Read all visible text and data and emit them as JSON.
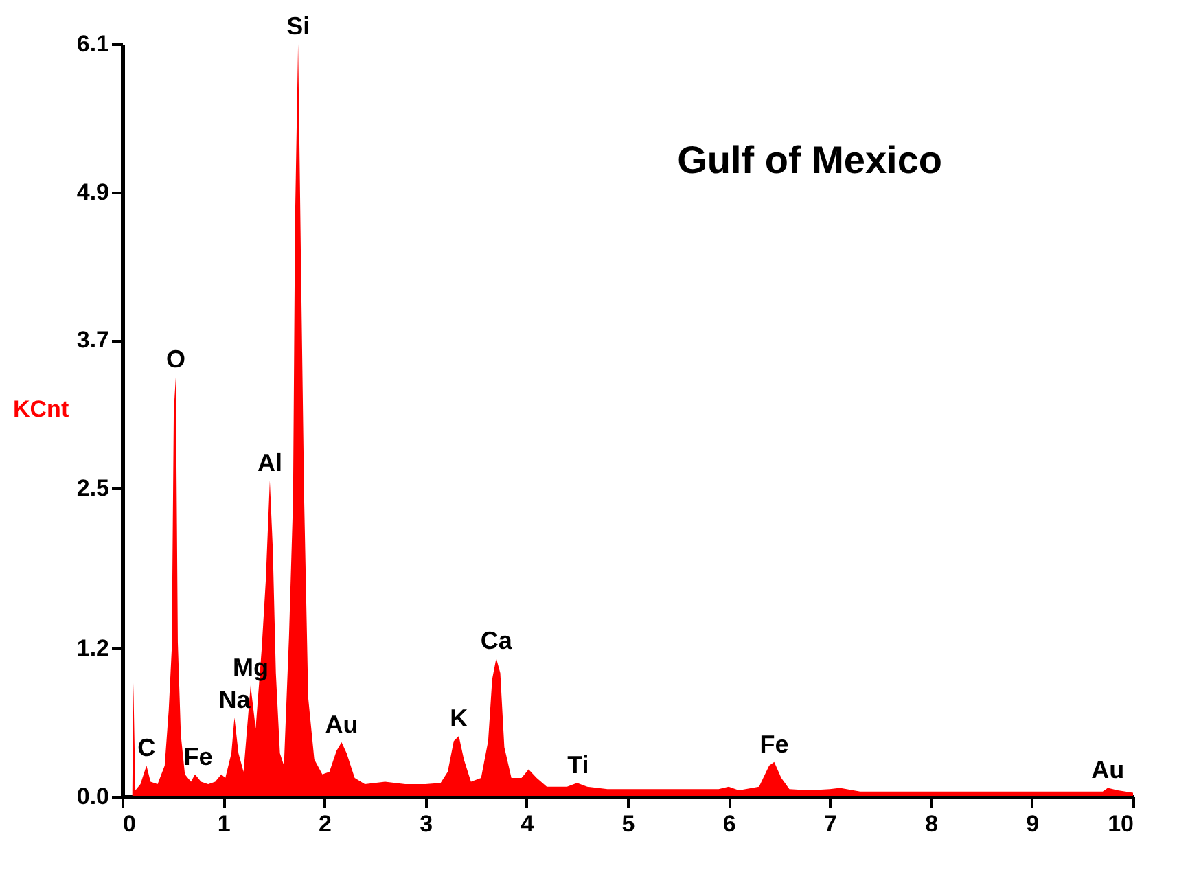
{
  "chart_data": {
    "type": "area",
    "title": "Gulf of Mexico",
    "ylabel": "KCnt",
    "x": [
      0.1,
      0.11,
      0.13,
      0.18,
      0.24,
      0.28,
      0.35,
      0.42,
      0.46,
      0.49,
      0.51,
      0.53,
      0.55,
      0.58,
      0.62,
      0.68,
      0.72,
      0.78,
      0.85,
      0.92,
      0.98,
      1.02,
      1.08,
      1.11,
      1.15,
      1.2,
      1.27,
      1.32,
      1.38,
      1.42,
      1.46,
      1.49,
      1.52,
      1.56,
      1.6,
      1.65,
      1.69,
      1.71,
      1.74,
      1.77,
      1.8,
      1.84,
      1.9,
      1.98,
      2.05,
      2.12,
      2.17,
      2.22,
      2.3,
      2.4,
      2.6,
      2.8,
      3.0,
      3.15,
      3.22,
      3.28,
      3.33,
      3.38,
      3.45,
      3.55,
      3.62,
      3.66,
      3.7,
      3.74,
      3.78,
      3.85,
      3.95,
      4.02,
      4.1,
      4.2,
      4.4,
      4.5,
      4.6,
      4.8,
      5.2,
      5.9,
      6.0,
      6.1,
      6.3,
      6.4,
      6.45,
      6.52,
      6.6,
      6.8,
      7.0,
      7.1,
      7.3,
      8.0,
      9.0,
      9.7,
      9.75,
      9.85,
      10.0
    ],
    "series": [
      {
        "color": "#ff0000",
        "values": [
          0.02,
          0.92,
          0.05,
          0.1,
          0.25,
          0.12,
          0.1,
          0.25,
          0.7,
          1.2,
          3.13,
          3.4,
          1.25,
          0.5,
          0.18,
          0.12,
          0.18,
          0.12,
          0.1,
          0.12,
          0.18,
          0.15,
          0.35,
          0.64,
          0.35,
          0.2,
          0.9,
          0.55,
          1.2,
          1.75,
          2.56,
          2.0,
          1.0,
          0.35,
          0.25,
          1.3,
          2.4,
          4.69,
          6.1,
          4.2,
          2.4,
          0.8,
          0.3,
          0.18,
          0.2,
          0.37,
          0.44,
          0.35,
          0.15,
          0.1,
          0.12,
          0.1,
          0.1,
          0.11,
          0.2,
          0.45,
          0.49,
          0.3,
          0.12,
          0.15,
          0.45,
          0.95,
          1.12,
          1.0,
          0.4,
          0.15,
          0.15,
          0.22,
          0.15,
          0.08,
          0.08,
          0.11,
          0.08,
          0.06,
          0.06,
          0.06,
          0.08,
          0.05,
          0.08,
          0.25,
          0.28,
          0.15,
          0.06,
          0.05,
          0.06,
          0.07,
          0.04,
          0.04,
          0.04,
          0.04,
          0.07,
          0.05,
          0.03
        ]
      }
    ],
    "xlim": [
      0,
      10
    ],
    "xticks": [
      0,
      1,
      2,
      3,
      4,
      5,
      6,
      7,
      8,
      9,
      10
    ],
    "ylim": [
      0,
      6.1
    ],
    "yticks": [
      {
        "value": 0,
        "label": "0.0"
      },
      {
        "value": 1.2,
        "label": "1.2"
      },
      {
        "value": 2.5,
        "label": "2.5"
      },
      {
        "value": 3.7,
        "label": "3.7"
      },
      {
        "value": 4.9,
        "label": "4.9"
      },
      {
        "value": 6.1,
        "label": "6.1"
      }
    ],
    "annotations": [
      {
        "text": "C",
        "x": 0.24,
        "y": 0.25
      },
      {
        "text": "O",
        "x": 0.53,
        "y": 3.4
      },
      {
        "text": "Fe",
        "x": 0.75,
        "y": 0.18
      },
      {
        "text": "Na",
        "x": 1.11,
        "y": 0.64
      },
      {
        "text": "Mg",
        "x": 1.27,
        "y": 0.9
      },
      {
        "text": "Al",
        "x": 1.46,
        "y": 2.56
      },
      {
        "text": "Si",
        "x": 1.74,
        "y": 6.1
      },
      {
        "text": "Au",
        "x": 2.17,
        "y": 0.44
      },
      {
        "text": "K",
        "x": 3.33,
        "y": 0.49
      },
      {
        "text": "Ca",
        "x": 3.7,
        "y": 1.12
      },
      {
        "text": "Ti",
        "x": 4.51,
        "y": 0.11
      },
      {
        "text": "Fe",
        "x": 6.45,
        "y": 0.28
      },
      {
        "text": "Au",
        "x": 9.75,
        "y": 0.07
      }
    ]
  }
}
